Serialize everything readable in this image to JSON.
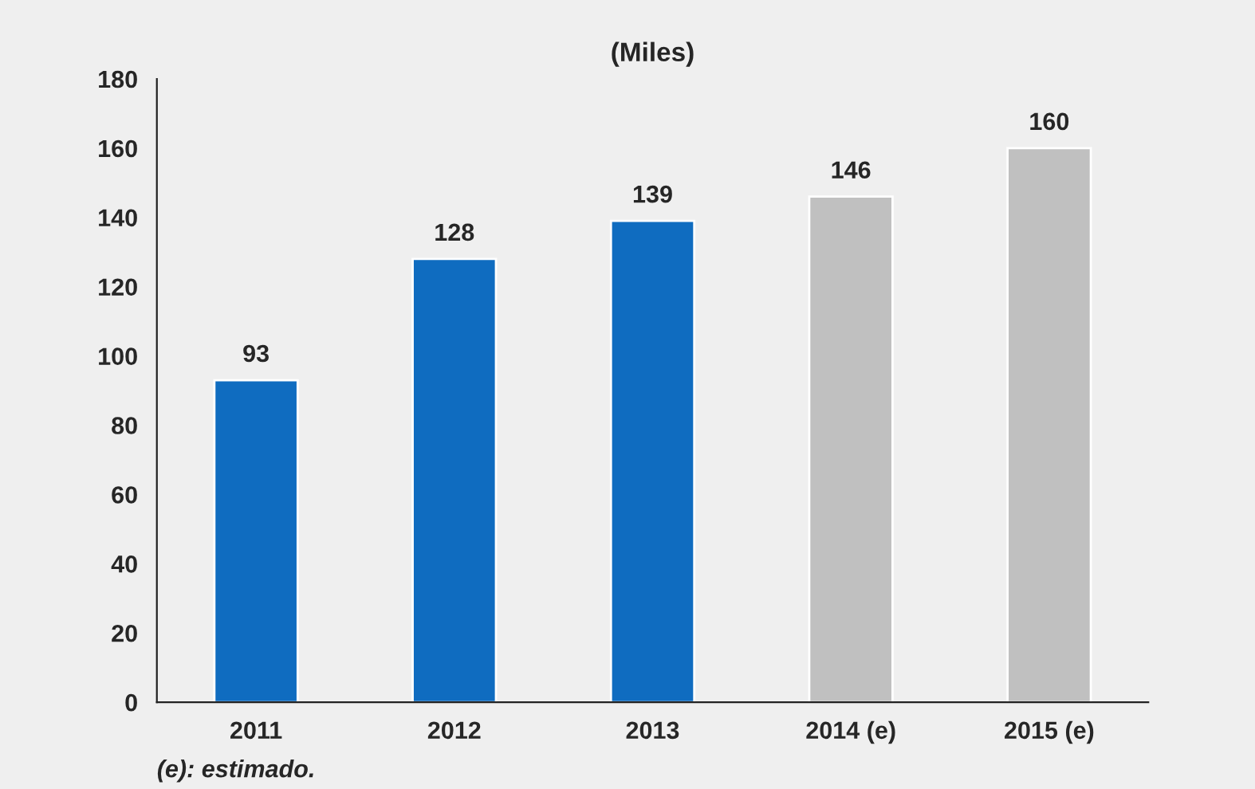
{
  "chart_data": {
    "type": "bar",
    "title": "(Miles)",
    "categories": [
      "2011",
      "2012",
      "2013",
      "2014 (e)",
      "2015 (e)"
    ],
    "values": [
      93,
      128,
      139,
      146,
      160
    ],
    "colors": [
      "#0f6cc0",
      "#0f6cc0",
      "#0f6cc0",
      "#c0c0c0",
      "#c0c0c0"
    ],
    "ylim": [
      0,
      180
    ],
    "yticks": [
      0,
      20,
      40,
      60,
      80,
      100,
      120,
      140,
      160,
      180
    ],
    "data_labels": true,
    "grid": false,
    "legend": false,
    "annotations": [
      "(e): estimado."
    ]
  }
}
